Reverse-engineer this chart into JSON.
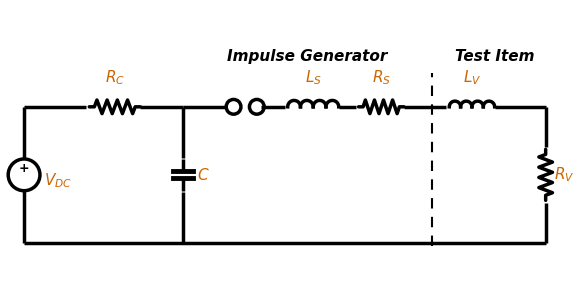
{
  "title_left": "Impulse Generator",
  "title_right": "Test Item",
  "label_Rc": "R_C",
  "label_Ls": "L_S",
  "label_Rs": "R_S",
  "label_Lv": "L_V",
  "label_C": "C",
  "label_Rv": "R_V",
  "label_Vdc": "V_{DC}",
  "bg_color": "#ffffff",
  "line_color": "#000000",
  "label_color_orange": "#cc6600",
  "lw": 2.5
}
